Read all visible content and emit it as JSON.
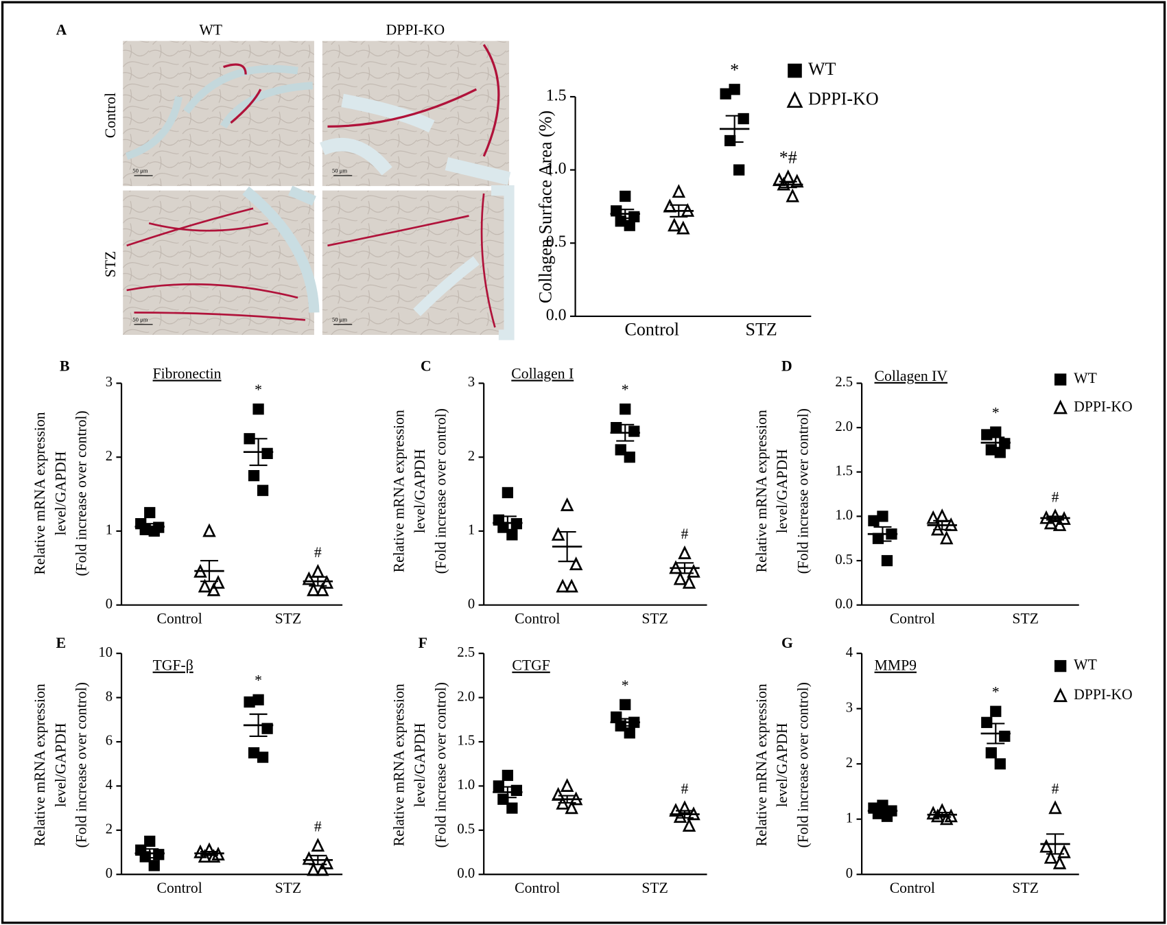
{
  "histology": {
    "panel": "A",
    "columns": [
      "WT",
      "DPPI-KO"
    ],
    "rows": [
      "Control",
      "STZ"
    ],
    "scale_bar": "50 μm"
  },
  "chart_data": [
    {
      "type": "dot",
      "y_label": [
        "Collagen Surface Area (%)"
      ],
      "categories": [
        "Control",
        "STZ"
      ],
      "ylim": [
        0,
        1.5
      ],
      "yticks": [
        {
          "value": 0,
          "label": "0.0"
        },
        0.5,
        {
          "value": 1,
          "label": "1.0"
        },
        1.5
      ],
      "legend": true,
      "series": [
        {
          "name": "WT",
          "color": "#000000",
          "marker": "square",
          "points": [
            [
              0.82,
              0.72,
              0.68,
              0.65,
              0.62
            ],
            [
              1.55,
              1.52,
              1.35,
              1.2,
              1.0
            ]
          ],
          "mean": [
            0.7,
            1.28
          ],
          "sem": [
            0.03,
            0.09
          ],
          "significance": [
            null,
            "*"
          ]
        },
        {
          "name": "DPPI-KO",
          "color": "#000000",
          "marker": "triangle",
          "points": [
            [
              0.85,
              0.75,
              0.72,
              0.62,
              0.6
            ],
            [
              0.95,
              0.93,
              0.92,
              0.9,
              0.82
            ]
          ],
          "mean": [
            0.72,
            0.9
          ],
          "sem": [
            0.04,
            0.02
          ],
          "significance": [
            null,
            "*#"
          ]
        }
      ]
    },
    {
      "type": "dot",
      "panel": "B",
      "title": "Fibronectin",
      "y_label": [
        "Relative mRNA expression",
        "level/GAPDH",
        "(Fold increase over control)"
      ],
      "categories": [
        "Control",
        "STZ"
      ],
      "ylim": [
        0,
        3
      ],
      "yticks": [
        0,
        1,
        2,
        3
      ],
      "legend": false,
      "series": [
        {
          "name": "WT",
          "color": "#000000",
          "marker": "square",
          "points": [
            [
              1.25,
              1.1,
              1.05,
              1.02,
              1.0
            ],
            [
              2.65,
              2.25,
              2.05,
              1.75,
              1.55
            ]
          ],
          "mean": [
            1.06,
            2.07
          ],
          "sem": [
            0.04,
            0.18
          ],
          "significance": [
            null,
            "*"
          ]
        },
        {
          "name": "DPPI-KO",
          "color": "#000000",
          "marker": "triangle",
          "points": [
            [
              1.0,
              0.45,
              0.3,
              0.25,
              0.2
            ],
            [
              0.45,
              0.35,
              0.3,
              0.2,
              0.2
            ]
          ],
          "mean": [
            0.46,
            0.32
          ],
          "sem": [
            0.14,
            0.06
          ],
          "significance": [
            null,
            "#"
          ]
        }
      ]
    },
    {
      "type": "dot",
      "panel": "C",
      "title": "Collagen I",
      "y_label": [
        "Relative mRNA expression",
        "level/GAPDH",
        "(Fold increase over control)"
      ],
      "categories": [
        "Control",
        "STZ"
      ],
      "ylim": [
        0,
        3
      ],
      "yticks": [
        0,
        1,
        2,
        3
      ],
      "legend": false,
      "series": [
        {
          "name": "WT",
          "color": "#000000",
          "marker": "square",
          "points": [
            [
              1.52,
              1.15,
              1.1,
              1.05,
              0.95
            ],
            [
              2.65,
              2.4,
              2.35,
              2.1,
              2.0
            ]
          ],
          "mean": [
            1.11,
            2.33
          ],
          "sem": [
            0.09,
            0.11
          ],
          "significance": [
            null,
            "*"
          ]
        },
        {
          "name": "DPPI-KO",
          "color": "#000000",
          "marker": "triangle",
          "points": [
            [
              1.35,
              0.95,
              0.55,
              0.25,
              0.25
            ],
            [
              0.7,
              0.5,
              0.45,
              0.35,
              0.3
            ]
          ],
          "mean": [
            0.79,
            0.5
          ],
          "sem": [
            0.2,
            0.07
          ],
          "significance": [
            null,
            "#"
          ]
        }
      ]
    },
    {
      "type": "dot",
      "panel": "D",
      "title": "Collagen IV",
      "y_label": [
        "Relative mRNA expression",
        "level/GAPDH",
        "(Fold increase over control)"
      ],
      "categories": [
        "Control",
        "STZ"
      ],
      "ylim": [
        0,
        2.5
      ],
      "yticks": [
        {
          "value": 0,
          "label": "0.0"
        },
        0.5,
        {
          "value": 1,
          "label": "1.0"
        },
        1.5,
        {
          "value": 2,
          "label": "2.0"
        },
        2.5
      ],
      "legend": true,
      "series": [
        {
          "name": "WT",
          "color": "#000000",
          "marker": "square",
          "points": [
            [
              1.0,
              0.95,
              0.8,
              0.75,
              0.5
            ],
            [
              1.95,
              1.92,
              1.82,
              1.75,
              1.72
            ]
          ],
          "mean": [
            0.8,
            1.83
          ],
          "sem": [
            0.08,
            0.06
          ],
          "significance": [
            null,
            "*"
          ]
        },
        {
          "name": "DPPI-KO",
          "color": "#000000",
          "marker": "triangle",
          "points": [
            [
              1.0,
              0.98,
              0.9,
              0.85,
              0.75
            ],
            [
              1.0,
              0.98,
              0.97,
              0.92,
              0.9
            ]
          ],
          "mean": [
            0.9,
            0.98
          ],
          "sem": [
            0.05,
            0.02
          ],
          "significance": [
            null,
            "#"
          ]
        }
      ]
    },
    {
      "type": "dot",
      "panel": "E",
      "title": "TGF-β",
      "y_label": [
        "Relative mRNA expression",
        "level/GAPDH",
        "(Fold increase over control)"
      ],
      "categories": [
        "Control",
        "STZ"
      ],
      "ylim": [
        0,
        10
      ],
      "yticks": [
        0,
        2,
        4,
        6,
        8,
        10
      ],
      "legend": false,
      "series": [
        {
          "name": "WT",
          "color": "#000000",
          "marker": "square",
          "points": [
            [
              1.5,
              1.1,
              0.9,
              0.8,
              0.4
            ],
            [
              7.9,
              7.8,
              6.6,
              5.5,
              5.3
            ]
          ],
          "mean": [
            0.95,
            6.75
          ],
          "sem": [
            0.2,
            0.5
          ],
          "significance": [
            null,
            "*"
          ]
        },
        {
          "name": "DPPI-KO",
          "color": "#000000",
          "marker": "triangle",
          "points": [
            [
              1.1,
              1.0,
              0.9,
              0.8,
              0.8
            ],
            [
              1.3,
              0.7,
              0.5,
              0.2,
              0.2
            ]
          ],
          "mean": [
            0.95,
            0.65
          ],
          "sem": [
            0.08,
            0.2
          ],
          "significance": [
            null,
            "#"
          ]
        }
      ]
    },
    {
      "type": "dot",
      "panel": "F",
      "title": "CTGF",
      "y_label": [
        "Relative mRNA expression",
        "level/GAPDH",
        "(Fold increase over control)"
      ],
      "categories": [
        "Control",
        "STZ"
      ],
      "ylim": [
        0,
        2.5
      ],
      "yticks": [
        {
          "value": 0,
          "label": "0.0"
        },
        0.5,
        {
          "value": 1,
          "label": "1.0"
        },
        1.5,
        {
          "value": 2,
          "label": "2.0"
        },
        2.5
      ],
      "legend": false,
      "series": [
        {
          "name": "WT",
          "color": "#000000",
          "marker": "square",
          "points": [
            [
              1.12,
              1.0,
              0.95,
              0.85,
              0.75
            ],
            [
              1.92,
              1.78,
              1.72,
              1.68,
              1.6
            ]
          ],
          "mean": [
            0.93,
            1.72
          ],
          "sem": [
            0.06,
            0.04
          ],
          "significance": [
            null,
            "*"
          ]
        },
        {
          "name": "DPPI-KO",
          "color": "#000000",
          "marker": "triangle",
          "points": [
            [
              1.0,
              0.9,
              0.85,
              0.8,
              0.75
            ],
            [
              0.75,
              0.72,
              0.68,
              0.65,
              0.55
            ]
          ],
          "mean": [
            0.85,
            0.68
          ],
          "sem": [
            0.04,
            0.04
          ],
          "significance": [
            null,
            "#"
          ]
        }
      ]
    },
    {
      "type": "dot",
      "panel": "G",
      "title": "MMP9",
      "y_label": [
        "Relative mRNA expression",
        "level/GAPDH",
        "(Fold increase over control)"
      ],
      "categories": [
        "Control",
        "STZ"
      ],
      "ylim": [
        0,
        4
      ],
      "yticks": [
        0,
        1,
        2,
        3,
        4
      ],
      "legend": true,
      "series": [
        {
          "name": "WT",
          "color": "#000000",
          "marker": "square",
          "points": [
            [
              1.25,
              1.2,
              1.15,
              1.1,
              1.05
            ],
            [
              2.95,
              2.75,
              2.5,
              2.2,
              2.0
            ]
          ],
          "mean": [
            1.15,
            2.55
          ],
          "sem": [
            0.04,
            0.18
          ],
          "significance": [
            null,
            "*"
          ]
        },
        {
          "name": "DPPI-KO",
          "color": "#000000",
          "marker": "triangle",
          "points": [
            [
              1.15,
              1.1,
              1.05,
              1.05,
              1.0
            ],
            [
              1.2,
              0.5,
              0.4,
              0.3,
              0.2
            ]
          ],
          "mean": [
            1.08,
            0.55
          ],
          "sem": [
            0.04,
            0.18
          ],
          "significance": [
            null,
            "#"
          ]
        }
      ]
    }
  ]
}
